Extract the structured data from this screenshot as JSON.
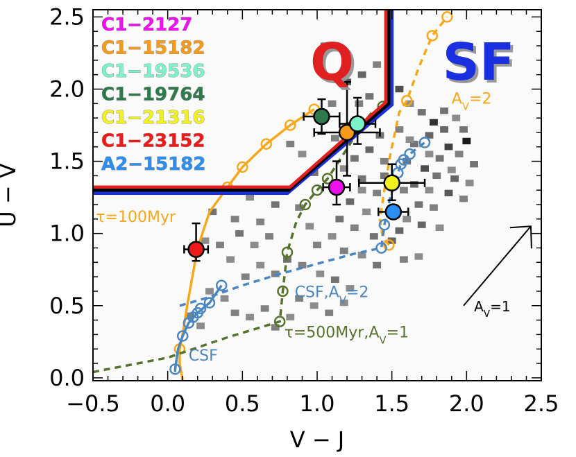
{
  "chart_data": {
    "type": "scatter",
    "xlabel": "V − J",
    "ylabel": "U − V",
    "xlim": [
      -0.5,
      2.5
    ],
    "ylim": [
      -0.02,
      2.55
    ],
    "xticks": [
      "−0.5",
      "0.0",
      "0.5",
      "1.0",
      "1.5",
      "2.0",
      "2.5"
    ],
    "xtick_values": [
      -0.5,
      0.0,
      0.5,
      1.0,
      1.5,
      2.0,
      2.5
    ],
    "yticks": [
      "0.0",
      "0.5",
      "1.0",
      "1.5",
      "2.0",
      "2.5"
    ],
    "ytick_values": [
      0.0,
      0.5,
      1.0,
      1.5,
      2.0,
      2.5
    ],
    "grid": false,
    "legend_position": "top-left",
    "region_labels": [
      {
        "text": "Q",
        "x": 1.1,
        "y": 2.2,
        "color": "#e02020",
        "outline": "#999999"
      },
      {
        "text": "SF",
        "x": 2.08,
        "y": 2.2,
        "color": "#1a2fe0",
        "outline": "#999999"
      }
    ],
    "selection_boundary": {
      "points": [
        [
          -0.5,
          1.3
        ],
        [
          0.81,
          1.3
        ],
        [
          1.48,
          1.9
        ],
        [
          1.48,
          2.55
        ]
      ],
      "colors": [
        "#1a2fe0",
        "#000000",
        "#e02020"
      ]
    },
    "galaxies": [
      {
        "name": "C1-2127",
        "x": 1.13,
        "y": 1.32,
        "xerr": 0.09,
        "yerr_low": 0.12,
        "yerr_high": 0.18,
        "color": "#ee10ee"
      },
      {
        "name": "C1-15182",
        "x": 1.2,
        "y": 1.7,
        "xerr": 0.22,
        "yerr_low": 0.3,
        "yerr_high": 0.35,
        "color": "#f59a1a"
      },
      {
        "name": "C1-19536",
        "x": 1.27,
        "y": 1.76,
        "xerr": 0.12,
        "yerr_low": 0.14,
        "yerr_high": 0.18,
        "color": "#7cf2c8"
      },
      {
        "name": "C1-19764",
        "x": 1.03,
        "y": 1.81,
        "xerr": 0.12,
        "yerr_low": 0.12,
        "yerr_high": 0.12,
        "color": "#2e7a4c"
      },
      {
        "name": "C1-21316",
        "x": 1.5,
        "y": 1.35,
        "xerr": 0.22,
        "yerr_low": 0.12,
        "yerr_high": 0.13,
        "color": "#f2f21a"
      },
      {
        "name": "C1-23152",
        "x": 0.19,
        "y": 0.89,
        "xerr": 0.08,
        "yerr_low": 0.08,
        "yerr_high": 0.18,
        "color": "#ee1a1a"
      },
      {
        "name": "A2-15182",
        "x": 1.51,
        "y": 1.15,
        "xerr": 0.1,
        "yerr_low": 0.0,
        "yerr_high": 0.0,
        "color": "#2a8ef2"
      }
    ],
    "legend": [
      {
        "label": "C1−2127",
        "color": "#ee10ee"
      },
      {
        "label": "C1−15182",
        "color": "#f59a1a"
      },
      {
        "label": "C1−19536",
        "color": "#7cf2c8"
      },
      {
        "label": "C1−19764",
        "color": "#2e7a4c"
      },
      {
        "label": "C1−21316",
        "color": "#f2f21a"
      },
      {
        "label": "C1−23152",
        "color": "#ee1a1a"
      },
      {
        "label": "A2−15182",
        "color": "#2a8ef2"
      }
    ],
    "tracks": [
      {
        "label": "τ=100Myr",
        "color": "#f7a71a",
        "dash": "none",
        "line": [
          [
            0.1,
            -0.02
          ],
          [
            0.08,
            0.1
          ],
          [
            0.08,
            0.2
          ],
          [
            0.1,
            0.3
          ],
          [
            0.13,
            0.5
          ],
          [
            0.2,
            0.9
          ],
          [
            0.28,
            1.15
          ],
          [
            0.4,
            1.32
          ],
          [
            0.5,
            1.46
          ],
          [
            0.66,
            1.62
          ],
          [
            0.82,
            1.75
          ],
          [
            0.98,
            1.86
          ]
        ],
        "markers": [
          [
            0.08,
            0.2
          ],
          [
            0.4,
            1.32
          ],
          [
            0.5,
            1.46
          ],
          [
            0.66,
            1.62
          ],
          [
            0.82,
            1.75
          ],
          [
            0.98,
            1.86
          ]
        ]
      },
      {
        "label": "",
        "color": "#f7a71a",
        "dash": "9,7",
        "line": [
          [
            1.48,
            0.92
          ],
          [
            1.44,
            0.97
          ],
          [
            1.42,
            1.1
          ],
          [
            1.45,
            1.3
          ],
          [
            1.49,
            1.55
          ],
          [
            1.55,
            1.84
          ],
          [
            1.6,
            1.92
          ],
          [
            1.68,
            2.15
          ],
          [
            1.77,
            2.37
          ],
          [
            1.87,
            2.5
          ]
        ],
        "markers": [
          [
            1.48,
            0.92
          ],
          [
            1.6,
            1.92
          ],
          [
            1.77,
            2.37
          ],
          [
            1.87,
            2.5
          ]
        ]
      },
      {
        "label": "CSF",
        "color": "#4a86c0",
        "dash": "none",
        "line": [
          [
            0.05,
            0.04
          ],
          [
            0.05,
            0.06
          ],
          [
            0.07,
            0.2
          ],
          [
            0.1,
            0.29
          ],
          [
            0.14,
            0.38
          ],
          [
            0.2,
            0.45
          ],
          [
            0.28,
            0.52
          ],
          [
            0.36,
            0.64
          ]
        ],
        "markers": [
          [
            0.05,
            0.06
          ],
          [
            0.1,
            0.29
          ],
          [
            0.14,
            0.38
          ],
          [
            0.17,
            0.42
          ],
          [
            0.2,
            0.45
          ],
          [
            0.22,
            0.48
          ],
          [
            0.28,
            0.52
          ],
          [
            0.36,
            0.64
          ]
        ]
      },
      {
        "label": "CSF,Av=2",
        "color": "#4a86c0",
        "dash": "9,7",
        "line": [
          [
            0.08,
            0.5
          ],
          [
            0.25,
            0.55
          ],
          [
            0.5,
            0.64
          ],
          [
            0.75,
            0.72
          ],
          [
            1.0,
            0.79
          ],
          [
            1.25,
            0.86
          ],
          [
            1.43,
            0.9
          ],
          [
            1.45,
            1.06
          ],
          [
            1.49,
            1.25
          ],
          [
            1.52,
            1.35
          ],
          [
            1.56,
            1.48
          ],
          [
            1.62,
            1.55
          ],
          [
            1.72,
            1.63
          ]
        ],
        "markers": [
          [
            1.43,
            0.9
          ],
          [
            1.45,
            1.06
          ],
          [
            1.52,
            1.35
          ],
          [
            1.54,
            1.42
          ],
          [
            1.56,
            1.48
          ],
          [
            1.58,
            1.51
          ],
          [
            1.62,
            1.55
          ],
          [
            1.72,
            1.63
          ]
        ]
      },
      {
        "label": "τ=500Myr,Av=1",
        "color": "#56722c",
        "dash": "9,7",
        "line": [
          [
            -0.5,
            0.04
          ],
          [
            0.0,
            0.14
          ],
          [
            0.4,
            0.28
          ],
          [
            0.75,
            0.39
          ],
          [
            0.77,
            0.6
          ],
          [
            0.8,
            0.87
          ],
          [
            0.86,
            1.08
          ],
          [
            0.92,
            1.2
          ],
          [
            1.0,
            1.3
          ],
          [
            1.07,
            1.38
          ],
          [
            1.22,
            1.62
          ],
          [
            1.28,
            1.73
          ],
          [
            1.36,
            1.83
          ],
          [
            1.44,
            1.88
          ]
        ],
        "markers": [
          [
            0.75,
            0.39
          ],
          [
            0.77,
            0.6
          ],
          [
            0.8,
            0.87
          ],
          [
            0.92,
            1.2
          ],
          [
            1.0,
            1.3
          ],
          [
            1.07,
            1.38
          ],
          [
            1.44,
            1.88
          ]
        ]
      }
    ],
    "annotations": [
      {
        "text": "τ=100Myr",
        "x": -0.48,
        "y": 1.08,
        "color": "#f7a71a",
        "anchor": "start"
      },
      {
        "text": "CSF",
        "x": 0.14,
        "y": 0.12,
        "color": "#4a86c0",
        "anchor": "start"
      },
      {
        "text": "CSF,Av=2",
        "x": 0.85,
        "y": 0.56,
        "color": "#4a86c0",
        "anchor": "start"
      },
      {
        "text": "τ=500Myr,Av=1",
        "x": 0.78,
        "y": 0.28,
        "color": "#56722c",
        "anchor": "start"
      },
      {
        "text": "Av=2",
        "x": 1.9,
        "y": 1.9,
        "color": "#f7a71a",
        "anchor": "start"
      },
      {
        "text": "Av=1",
        "x": 2.05,
        "y": 0.46,
        "color": "#000000",
        "anchor": "start"
      }
    ],
    "reddening_vector": {
      "x1": 1.98,
      "y1": 0.5,
      "x2": 2.43,
      "y2": 1.05,
      "label": "Av=1"
    },
    "density_cells": [
      [
        1.05,
        2.3,
        0.55
      ],
      [
        1.2,
        2.05,
        0.65
      ],
      [
        1.3,
        2.1,
        0.6
      ],
      [
        1.4,
        2.17,
        0.5
      ],
      [
        1.35,
        1.95,
        0.55
      ],
      [
        1.1,
        1.9,
        0.5
      ],
      [
        1.55,
        2.0,
        0.7
      ],
      [
        1.62,
        1.9,
        0.45
      ],
      [
        1.7,
        1.84,
        0.55
      ],
      [
        1.78,
        1.77,
        0.8
      ],
      [
        1.85,
        1.72,
        0.6
      ],
      [
        1.93,
        1.8,
        0.45
      ],
      [
        1.98,
        1.72,
        0.55
      ],
      [
        1.88,
        1.6,
        0.75
      ],
      [
        2.0,
        1.64,
        0.9
      ],
      [
        1.95,
        1.55,
        0.5
      ],
      [
        1.82,
        1.52,
        0.55
      ],
      [
        1.72,
        1.45,
        0.7
      ],
      [
        1.8,
        1.4,
        0.55
      ],
      [
        1.9,
        1.44,
        0.45
      ],
      [
        2.05,
        1.48,
        0.55
      ],
      [
        1.65,
        1.34,
        0.6
      ],
      [
        1.75,
        1.3,
        0.45
      ],
      [
        1.88,
        1.28,
        0.65
      ],
      [
        1.98,
        1.24,
        0.5
      ],
      [
        1.68,
        1.2,
        0.55
      ],
      [
        1.6,
        1.1,
        0.45
      ],
      [
        1.7,
        1.06,
        0.6
      ],
      [
        1.82,
        1.04,
        0.45
      ],
      [
        1.55,
        1.02,
        0.6
      ],
      [
        1.42,
        1.68,
        0.55
      ],
      [
        1.35,
        1.58,
        0.6
      ],
      [
        1.45,
        1.5,
        0.5
      ],
      [
        1.25,
        1.52,
        0.55
      ],
      [
        1.18,
        1.45,
        0.45
      ],
      [
        1.3,
        1.38,
        0.55
      ],
      [
        1.4,
        1.28,
        0.5
      ],
      [
        1.22,
        1.22,
        0.6
      ],
      [
        1.33,
        1.15,
        0.45
      ],
      [
        1.15,
        1.1,
        0.55
      ],
      [
        1.25,
        1.04,
        0.5
      ],
      [
        1.38,
        0.98,
        0.55
      ],
      [
        1.5,
        0.95,
        0.6
      ],
      [
        1.1,
        0.98,
        0.45
      ],
      [
        1.18,
        0.88,
        0.5
      ],
      [
        1.3,
        0.85,
        0.45
      ],
      [
        1.4,
        0.78,
        0.55
      ],
      [
        1.0,
        0.92,
        0.5
      ],
      [
        0.95,
        1.05,
        0.45
      ],
      [
        0.88,
        1.18,
        0.5
      ],
      [
        0.98,
        1.42,
        0.55
      ],
      [
        0.9,
        1.55,
        0.45
      ],
      [
        0.82,
        1.62,
        0.5
      ],
      [
        0.72,
        1.2,
        0.55
      ],
      [
        0.62,
        1.08,
        0.5
      ],
      [
        0.55,
        1.25,
        0.45
      ],
      [
        0.45,
        1.1,
        0.5
      ],
      [
        0.48,
        1.0,
        0.55
      ],
      [
        0.58,
        0.92,
        0.45
      ],
      [
        0.68,
        0.98,
        0.5
      ],
      [
        0.8,
        0.82,
        0.55
      ],
      [
        0.9,
        0.78,
        0.5
      ],
      [
        1.02,
        0.72,
        0.45
      ],
      [
        1.12,
        0.68,
        0.55
      ],
      [
        1.22,
        0.62,
        0.45
      ],
      [
        0.72,
        0.72,
        0.5
      ],
      [
        0.62,
        0.78,
        0.45
      ],
      [
        0.52,
        0.7,
        0.5
      ],
      [
        0.42,
        0.82,
        0.45
      ],
      [
        0.35,
        0.92,
        0.5
      ],
      [
        0.3,
        1.15,
        0.55
      ],
      [
        0.25,
        0.95,
        0.45
      ],
      [
        0.88,
        0.55,
        0.5
      ],
      [
        0.98,
        0.5,
        0.45
      ],
      [
        1.08,
        0.45,
        0.5
      ],
      [
        1.18,
        0.52,
        0.45
      ],
      [
        0.65,
        0.48,
        0.5
      ],
      [
        0.55,
        0.42,
        0.45
      ],
      [
        0.45,
        0.45,
        0.5
      ],
      [
        0.38,
        0.55,
        0.45
      ],
      [
        0.72,
        0.35,
        0.5
      ],
      [
        0.82,
        0.42,
        0.45
      ],
      [
        0.15,
        0.43,
        0.5
      ],
      [
        0.22,
        0.36,
        0.45
      ],
      [
        0.28,
        0.6,
        0.45
      ],
      [
        1.68,
        0.84,
        0.45
      ],
      [
        1.58,
        0.82,
        0.5
      ],
      [
        1.3,
        1.3,
        0.45
      ],
      [
        1.22,
        1.75,
        0.55
      ],
      [
        1.28,
        1.9,
        0.5
      ],
      [
        1.18,
        2.1,
        0.45
      ],
      [
        1.12,
        1.66,
        0.5
      ],
      [
        1.45,
        1.4,
        0.55
      ],
      [
        1.58,
        1.3,
        0.5
      ],
      [
        1.65,
        1.62,
        0.55
      ],
      [
        1.75,
        1.68,
        0.6
      ],
      [
        1.55,
        1.72,
        0.5
      ],
      [
        1.6,
        1.5,
        0.55
      ],
      [
        1.75,
        1.55,
        0.45
      ],
      [
        1.85,
        1.85,
        0.55
      ],
      [
        1.92,
        1.38,
        0.6
      ],
      [
        2.02,
        1.35,
        0.45
      ],
      [
        1.78,
        1.18,
        0.5
      ],
      [
        1.62,
        1.65,
        0.45
      ]
    ]
  }
}
